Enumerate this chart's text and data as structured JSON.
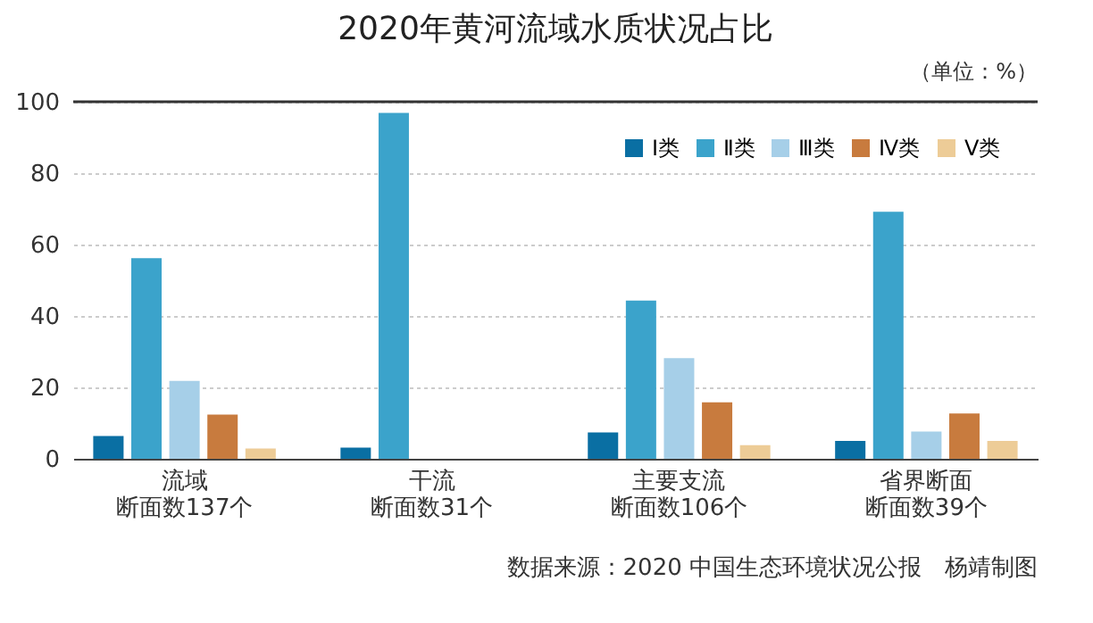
{
  "chart_data": {
    "type": "bar",
    "title": "2020年黄河流域水质状况占比",
    "categories": [
      "流域断面数137个",
      "干流断面数31个",
      "主要支流断面数106个",
      "省界断面断面数39个"
    ],
    "series": [
      {
        "name": "Ⅰ类",
        "color": "#0a6fa3",
        "values": [
          6.4,
          3.1,
          7.4,
          5.0
        ]
      },
      {
        "name": "Ⅱ类",
        "color": "#3ba3cb",
        "values": [
          56.2,
          96.9,
          44.3,
          69.2
        ]
      },
      {
        "name": "Ⅲ类",
        "color": "#a6cfe8",
        "values": [
          21.8,
          0,
          28.2,
          7.6
        ]
      },
      {
        "name": "Ⅳ类",
        "color": "#c87b3e",
        "values": [
          12.4,
          0,
          15.8,
          12.7
        ]
      },
      {
        "name": "Ⅴ类",
        "color": "#edcc97",
        "values": [
          2.9,
          0,
          3.8,
          5.0
        ]
      }
    ],
    "ylim": [
      0,
      100
    ],
    "yticks": [
      0,
      20,
      40,
      60,
      80,
      100
    ],
    "grid": "y",
    "legend": "top right",
    "annotations": [
      "（单位：%）",
      "数据来源：2020 中国生态环境状况公报　杨靖制图"
    ]
  }
}
